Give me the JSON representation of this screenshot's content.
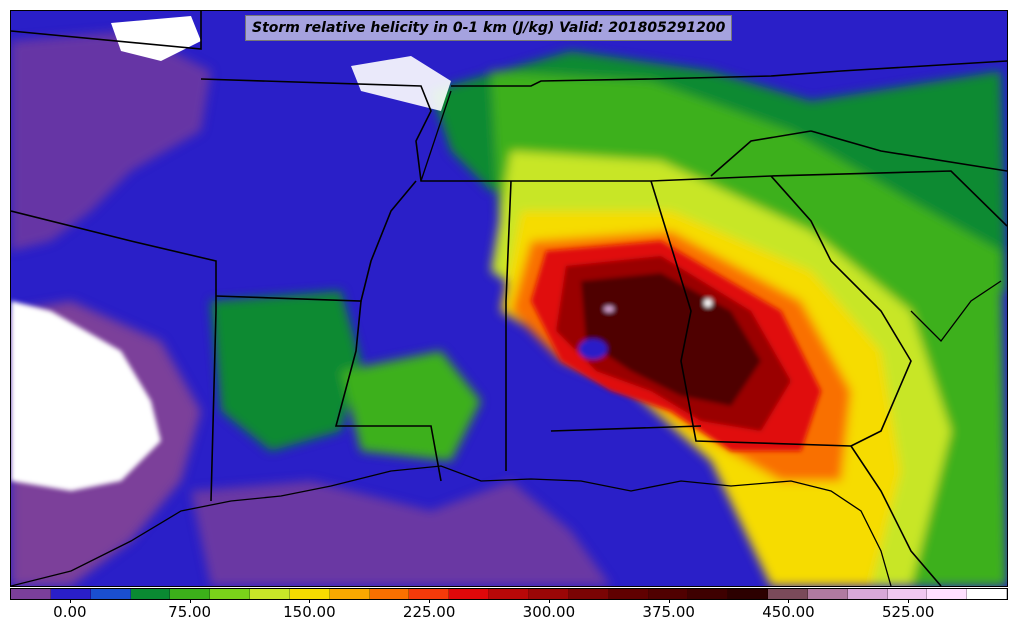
{
  "title": "Storm relative helicity in 0-1 km (J/kg) Valid: 201805291200",
  "colorbar": {
    "colors": [
      "#7b3f9a",
      "#2a1fc8",
      "#1a4fd0",
      "#0a8a32",
      "#3cb01a",
      "#7ad21a",
      "#c8e628",
      "#f6dc00",
      "#f9a800",
      "#f97000",
      "#f43a0a",
      "#e0080a",
      "#b80808",
      "#9a0606",
      "#7a0404",
      "#600000",
      "#500000",
      "#3e0000",
      "#2c0000",
      "#7a4a5a",
      "#b07aa0",
      "#d8a8d8",
      "#f0c8f0",
      "#ffe0ff",
      "#ffffff"
    ],
    "tick_labels": [
      "0.00",
      "75.00",
      "150.00",
      "225.00",
      "300.00",
      "375.00",
      "450.00",
      "525.00"
    ],
    "tick_values": [
      0,
      75,
      150,
      225,
      300,
      375,
      450,
      525
    ],
    "range": [
      -37.5,
      587.5
    ]
  }
}
